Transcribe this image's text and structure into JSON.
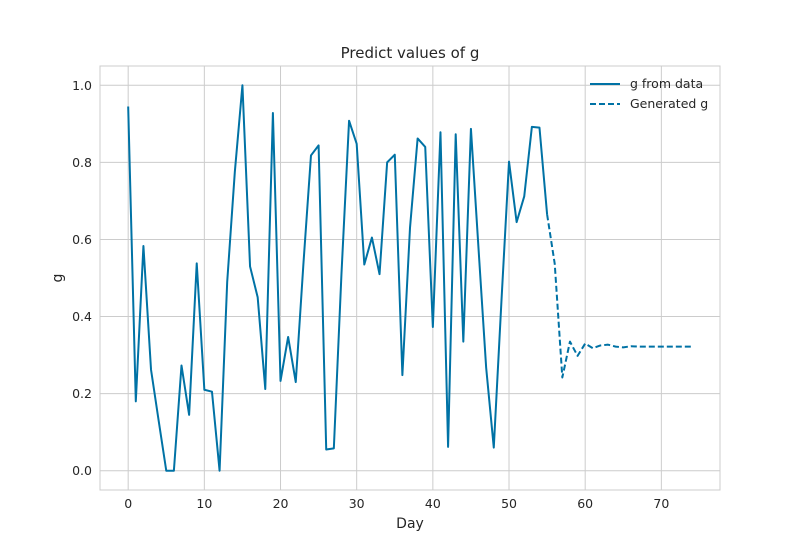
{
  "chart_data": {
    "type": "line",
    "title": "Predict values of g",
    "xlabel": "Day",
    "ylabel": "g",
    "xlim": [
      -3.7,
      77.7
    ],
    "ylim": [
      -0.05,
      1.05
    ],
    "xticks": [
      0,
      10,
      20,
      30,
      40,
      50,
      60,
      70
    ],
    "yticks": [
      0.0,
      0.2,
      0.4,
      0.6,
      0.8,
      1.0
    ],
    "xtick_labels": [
      "0",
      "10",
      "20",
      "30",
      "40",
      "50",
      "60",
      "70"
    ],
    "ytick_labels": [
      "0.0",
      "0.2",
      "0.4",
      "0.6",
      "0.8",
      "1.0"
    ],
    "grid": true,
    "legend_position": "top-right",
    "colors": {
      "line": "#0072a5",
      "grid": "#cccccc",
      "axes": "#cccccc",
      "text": "#262626"
    },
    "series": [
      {
        "name": "g from data",
        "style": "solid",
        "x": [
          0,
          1,
          2,
          3,
          4,
          5,
          6,
          7,
          8,
          9,
          10,
          11,
          12,
          13,
          14,
          15,
          16,
          17,
          18,
          19,
          20,
          21,
          22,
          23,
          24,
          25,
          26,
          27,
          28,
          29,
          30,
          31,
          32,
          33,
          34,
          35,
          36,
          37,
          38,
          39,
          40,
          41,
          42,
          43,
          44,
          45,
          46,
          47,
          48,
          49,
          50,
          51,
          52,
          53,
          54,
          55
        ],
        "y": [
          0.945,
          0.18,
          0.583,
          0.262,
          0.13,
          0.0,
          0.0,
          0.273,
          0.145,
          0.538,
          0.21,
          0.205,
          0.0,
          0.49,
          0.775,
          1.0,
          0.53,
          0.45,
          0.212,
          0.928,
          0.233,
          0.347,
          0.23,
          0.535,
          0.818,
          0.844,
          0.055,
          0.058,
          0.51,
          0.908,
          0.848,
          0.535,
          0.605,
          0.51,
          0.8,
          0.82,
          0.248,
          0.63,
          0.862,
          0.84,
          0.373,
          0.878,
          0.062,
          0.873,
          0.335,
          0.887,
          0.575,
          0.267,
          0.06,
          0.438,
          0.802,
          0.645,
          0.712,
          0.892,
          0.89,
          0.665
        ]
      },
      {
        "name": "Generated g",
        "style": "dashed",
        "x": [
          55,
          56,
          57,
          58,
          59,
          60,
          61,
          62,
          63,
          64,
          65,
          66,
          67,
          68,
          69,
          70,
          71,
          72,
          73,
          74
        ],
        "y": [
          0.665,
          0.537,
          0.242,
          0.335,
          0.298,
          0.33,
          0.318,
          0.325,
          0.327,
          0.322,
          0.32,
          0.323,
          0.322,
          0.322,
          0.322,
          0.322,
          0.322,
          0.322,
          0.322,
          0.322
        ]
      }
    ]
  }
}
